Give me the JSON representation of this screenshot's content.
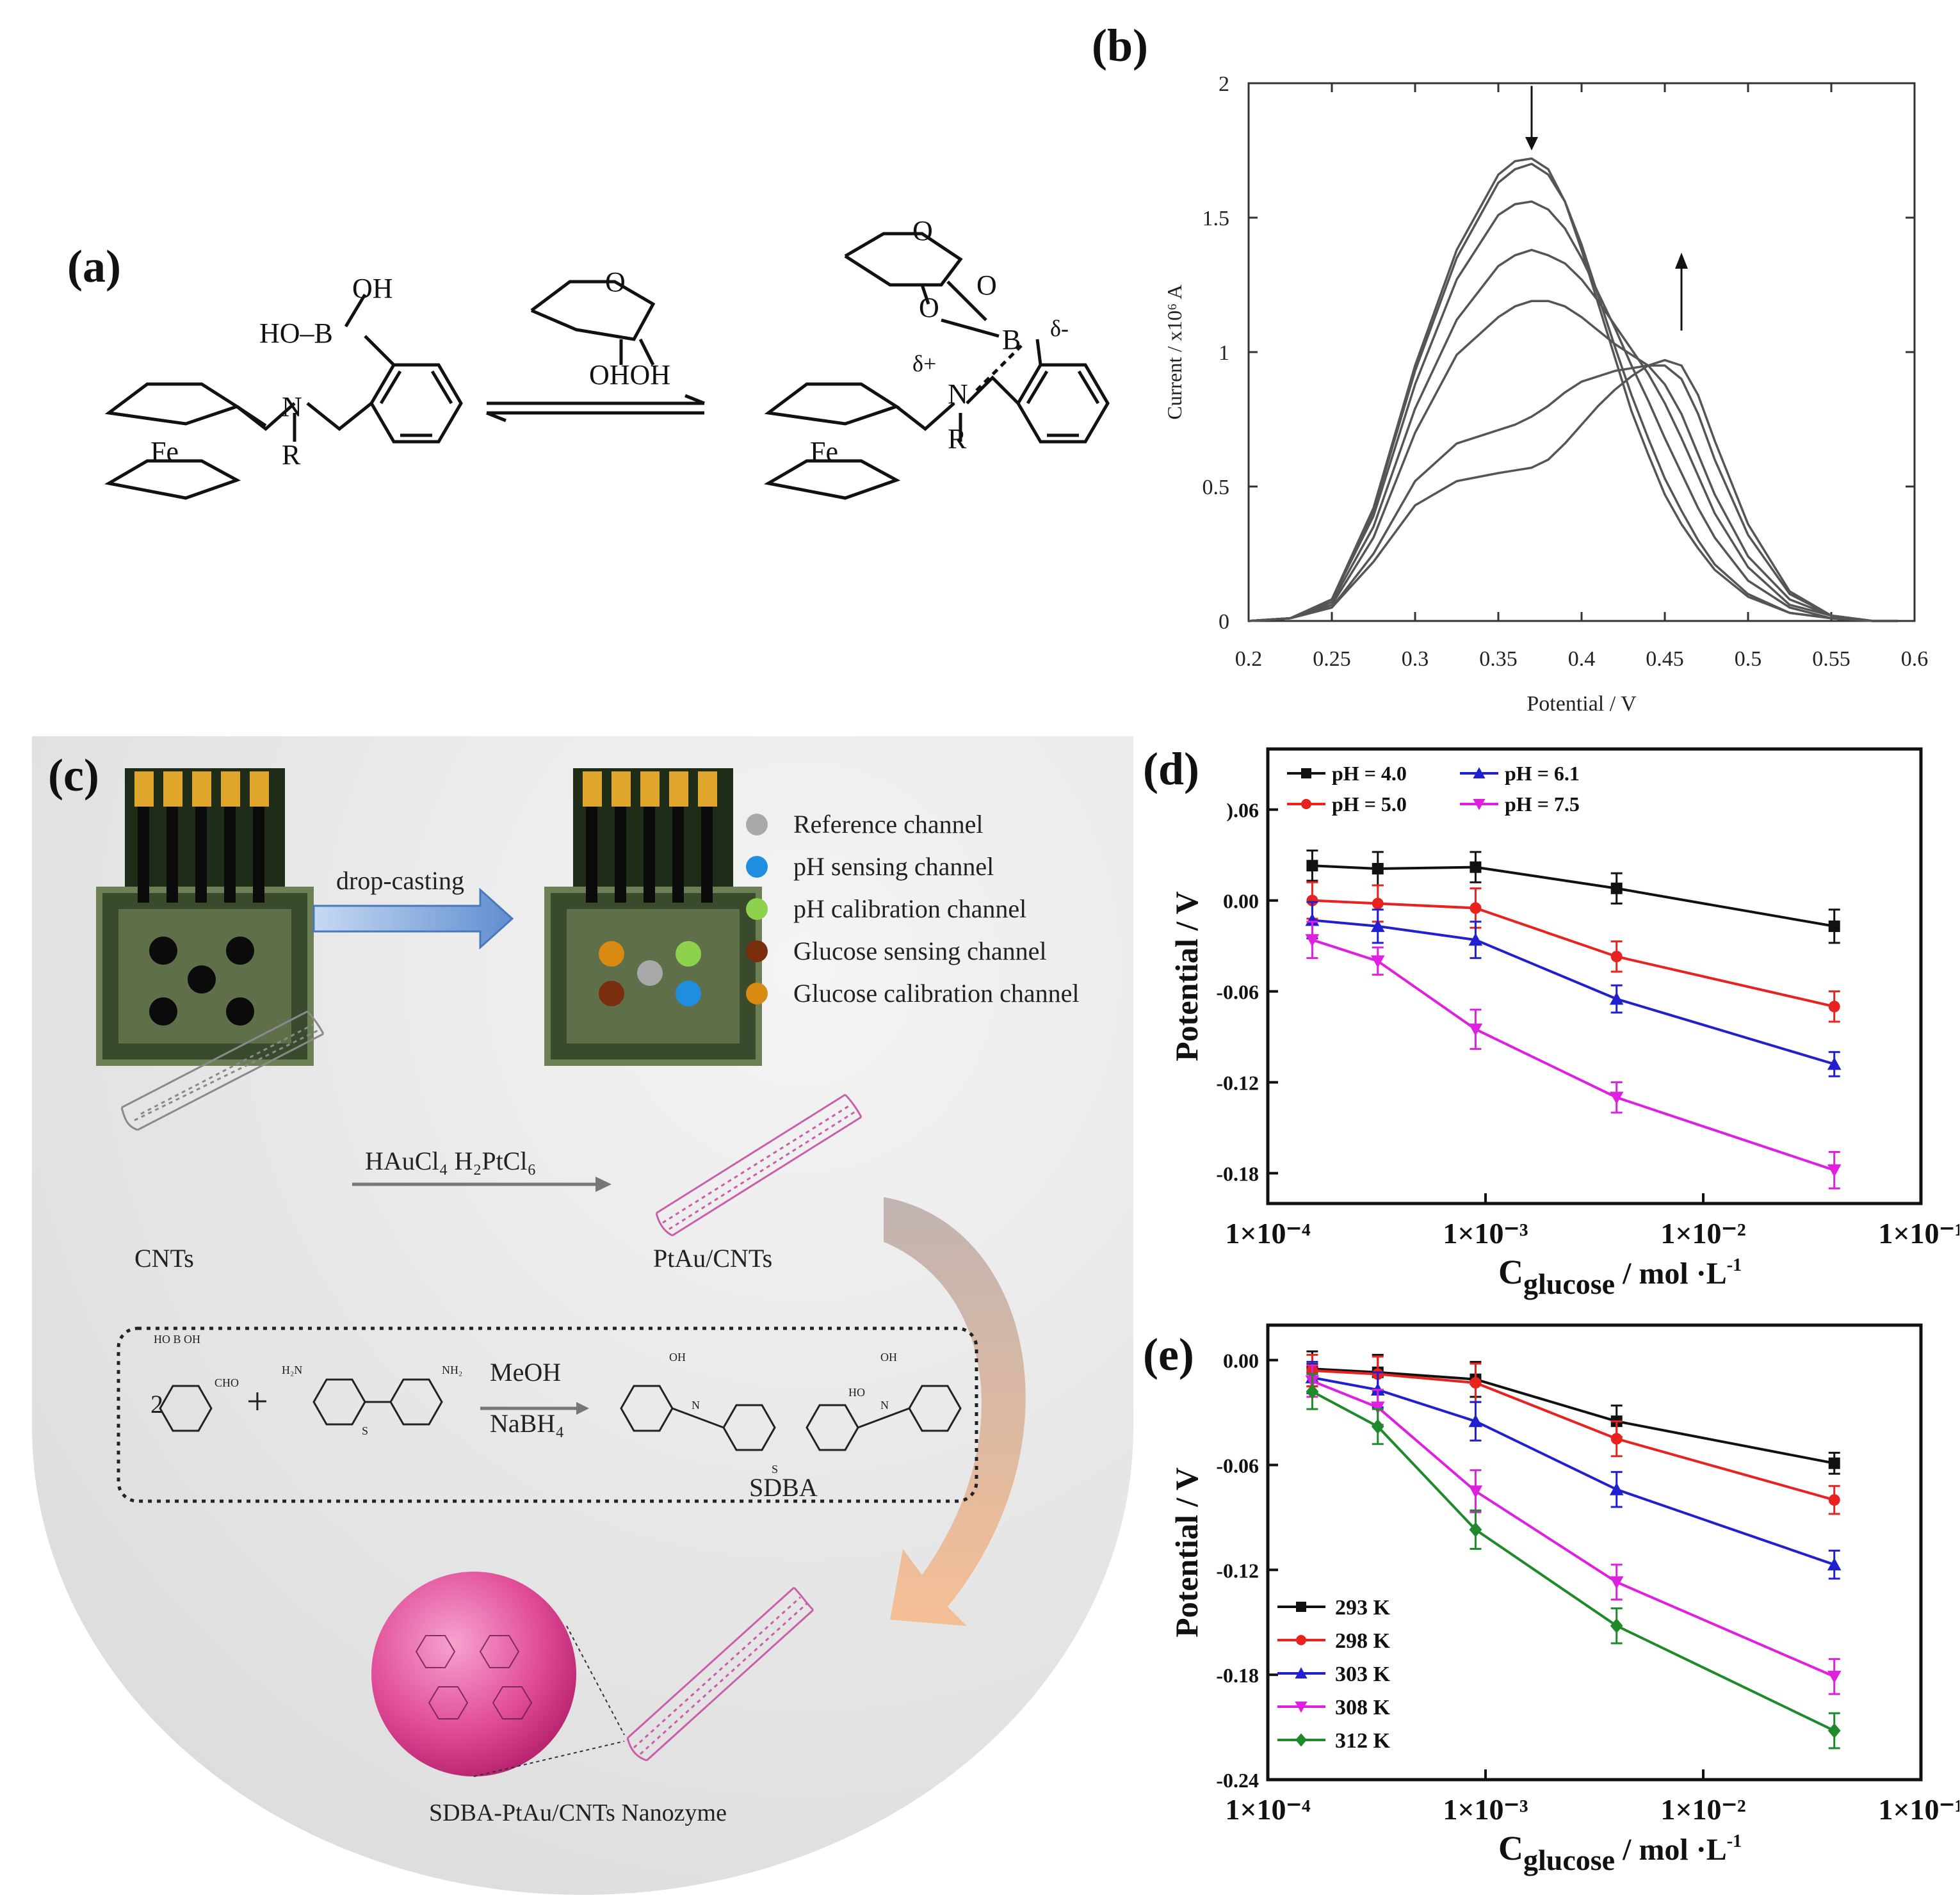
{
  "panels": {
    "a": {
      "label": "(a)",
      "left_molecule": {
        "oh_top": "OH",
        "ho_b": "HO–B",
        "nitrogen": "N",
        "r_group": "R",
        "iron": "Fe"
      },
      "reagent": {
        "ring_o": "O",
        "ohoh": "OHOH"
      },
      "right_molecule": {
        "ring_o1": "O",
        "ring_o2": "O",
        "o3": "O",
        "boron": "B",
        "delta_minus": "δ-",
        "delta_plus": "δ+",
        "nitrogen": "N",
        "r_group": "R",
        "iron": "Fe"
      }
    },
    "b": {
      "label": "(b)"
    },
    "c": {
      "label": "(c)",
      "drop_casting": "drop-casting",
      "legend": [
        {
          "label": "Reference channel",
          "color": "#a9a9a9"
        },
        {
          "label": "pH sensing channel",
          "color": "#1f8ee0"
        },
        {
          "label": "pH calibration channel",
          "color": "#8ed14c"
        },
        {
          "label": "Glucose sensing channel",
          "color": "#7a2e0e"
        },
        {
          "label": "Glucose calibration channel",
          "color": "#d88a12"
        }
      ],
      "reagents_arrow": "HAuCl₄  H₂PtCl₆",
      "cnts_label": "CNTs",
      "ptau_label": "PtAu/CNTs",
      "scheme": {
        "coefficient": "2",
        "plus": "+",
        "meoh": "MeOH",
        "nabh4": "NaBH₄",
        "product": "SDBA",
        "cho": "CHO",
        "ho_b_oh": "HO  B  OH",
        "nh2": "NH₂",
        "h2n": "H₂N",
        "s": "S",
        "oh": "OH",
        "ho": "HO",
        "n": "N"
      },
      "nanozyme_label": "SDBA-PtAu/CNTs Nanozyme"
    },
    "d": {
      "label": "(d)"
    },
    "e": {
      "label": "(e)"
    }
  },
  "chart_data": [
    {
      "id": "b",
      "type": "line",
      "title": "",
      "xlabel": "Potential / V",
      "ylabel": "Current / x10⁶ A",
      "xlim": [
        0.2,
        0.6
      ],
      "ylim": [
        0,
        2
      ],
      "xticks": [
        "0.2",
        "0.25",
        "0.3",
        "0.35",
        "0.4",
        "0.45",
        "0.5",
        "0.55",
        "0.6"
      ],
      "yticks": [
        "0",
        "0.5",
        "1",
        "1.5",
        "2"
      ],
      "x": [
        0.2,
        0.225,
        0.25,
        0.275,
        0.3,
        0.325,
        0.35,
        0.36,
        0.37,
        0.38,
        0.39,
        0.4,
        0.41,
        0.42,
        0.43,
        0.44,
        0.45,
        0.46,
        0.47,
        0.48,
        0.5,
        0.525,
        0.55,
        0.575,
        0.59
      ],
      "series": [
        {
          "name": "c1",
          "values": [
            0,
            0.01,
            0.08,
            0.42,
            0.95,
            1.38,
            1.66,
            1.71,
            1.72,
            1.68,
            1.56,
            1.38,
            1.18,
            0.98,
            0.78,
            0.62,
            0.47,
            0.36,
            0.27,
            0.19,
            0.09,
            0.03,
            0.01,
            0,
            0
          ]
        },
        {
          "name": "c2",
          "values": [
            0,
            0.01,
            0.08,
            0.41,
            0.93,
            1.35,
            1.63,
            1.68,
            1.7,
            1.66,
            1.56,
            1.4,
            1.21,
            1.02,
            0.84,
            0.68,
            0.53,
            0.41,
            0.3,
            0.21,
            0.1,
            0.03,
            0.01,
            0,
            0
          ]
        },
        {
          "name": "c3",
          "values": [
            0,
            0.01,
            0.08,
            0.39,
            0.88,
            1.27,
            1.51,
            1.55,
            1.56,
            1.53,
            1.46,
            1.35,
            1.22,
            1.09,
            0.95,
            0.82,
            0.68,
            0.55,
            0.42,
            0.31,
            0.15,
            0.05,
            0.01,
            0,
            0
          ]
        },
        {
          "name": "c4",
          "values": [
            0,
            0.01,
            0.07,
            0.35,
            0.79,
            1.12,
            1.32,
            1.36,
            1.38,
            1.36,
            1.33,
            1.27,
            1.19,
            1.1,
            1.01,
            0.92,
            0.81,
            0.68,
            0.54,
            0.4,
            0.2,
            0.06,
            0.02,
            0,
            0
          ]
        },
        {
          "name": "c5",
          "values": [
            0,
            0.01,
            0.06,
            0.31,
            0.7,
            0.99,
            1.13,
            1.17,
            1.19,
            1.19,
            1.17,
            1.13,
            1.08,
            1.03,
            0.99,
            0.95,
            0.88,
            0.77,
            0.62,
            0.47,
            0.24,
            0.08,
            0.02,
            0,
            0
          ]
        },
        {
          "name": "c6",
          "values": [
            0,
            0.01,
            0.05,
            0.25,
            0.52,
            0.66,
            0.71,
            0.73,
            0.76,
            0.8,
            0.85,
            0.89,
            0.91,
            0.93,
            0.94,
            0.95,
            0.95,
            0.9,
            0.77,
            0.6,
            0.32,
            0.1,
            0.02,
            0,
            0
          ]
        },
        {
          "name": "c7",
          "values": [
            0,
            0.01,
            0.05,
            0.22,
            0.43,
            0.52,
            0.55,
            0.56,
            0.57,
            0.6,
            0.66,
            0.73,
            0.8,
            0.86,
            0.91,
            0.95,
            0.97,
            0.95,
            0.84,
            0.67,
            0.36,
            0.11,
            0.02,
            0,
            0
          ]
        }
      ],
      "annotations": [
        "↓ (decreasing peak ~0.37 V)",
        "↑ (increasing peak ~0.46 V)"
      ]
    },
    {
      "id": "d",
      "type": "line",
      "xlabel": "C",
      "xlabel_sub": "glucose",
      "xlabel_unit": " / mol ·L",
      "xlabel_sup": "-1",
      "ylabel": "Potential / V",
      "x_log": true,
      "xlim": [
        0.0001,
        0.1
      ],
      "ylim": [
        -0.2,
        0.1
      ],
      "xticks": [
        "1×10⁻⁴",
        "1×10⁻³",
        "1×10⁻²",
        "1×10⁻¹"
      ],
      "yticks": [
        {
          "label": ").06",
          "value": 0.06
        },
        {
          "label": "0.00",
          "value": 0.0
        },
        {
          "label": "-0.06",
          "value": -0.06
        },
        {
          "label": "-0.12",
          "value": -0.12
        },
        {
          "label": "-0.18",
          "value": -0.18
        }
      ],
      "x": [
        0.00016,
        0.00032,
        0.0009,
        0.004,
        0.04
      ],
      "series": [
        {
          "name": "pH = 4.0",
          "color": "#111111",
          "marker": "square",
          "values": [
            0.023,
            0.021,
            0.022,
            0.008,
            -0.017
          ],
          "errors": [
            0.01,
            0.011,
            0.01,
            0.01,
            0.011
          ]
        },
        {
          "name": "pH = 5.0",
          "color": "#e8231f",
          "marker": "circle",
          "values": [
            0.0,
            -0.002,
            -0.005,
            -0.037,
            -0.07
          ],
          "errors": [
            0.012,
            0.012,
            0.013,
            0.01,
            0.01
          ]
        },
        {
          "name": "pH = 6.1",
          "color": "#2020d0",
          "marker": "triangle-up",
          "values": [
            -0.013,
            -0.017,
            -0.026,
            -0.065,
            -0.108
          ],
          "errors": [
            0.012,
            0.011,
            0.012,
            0.009,
            0.008
          ]
        },
        {
          "name": "pH = 7.5",
          "color": "#e020e0",
          "marker": "triangle-down",
          "values": [
            -0.026,
            -0.04,
            -0.085,
            -0.13,
            -0.178
          ],
          "errors": [
            0.012,
            0.009,
            0.013,
            0.01,
            0.012
          ]
        }
      ],
      "legend": "top-left"
    },
    {
      "id": "e",
      "type": "line",
      "xlabel": "C",
      "xlabel_sub": "glucose",
      "xlabel_unit": " / mol ·L",
      "xlabel_sup": "-1",
      "ylabel": "Potential / V",
      "x_log": true,
      "xlim": [
        0.0001,
        0.1
      ],
      "ylim": [
        -0.24,
        0.02
      ],
      "xticks": [
        "1×10⁻⁴",
        "1×10⁻³",
        "1×10⁻²",
        "1×10⁻¹"
      ],
      "yticks": [
        {
          "label": "0.00",
          "value": 0.0
        },
        {
          "label": "-0.06",
          "value": -0.06
        },
        {
          "label": "-0.12",
          "value": -0.12
        },
        {
          "label": "-0.18",
          "value": -0.18
        },
        {
          "label": "-0.24",
          "value": -0.24
        }
      ],
      "x": [
        0.00016,
        0.00032,
        0.0009,
        0.004,
        0.04
      ],
      "series": [
        {
          "name": "293 K",
          "color": "#111111",
          "marker": "square",
          "values": [
            -0.005,
            -0.007,
            -0.011,
            -0.035,
            -0.059
          ],
          "errors": [
            0.01,
            0.01,
            0.01,
            0.009,
            0.006
          ]
        },
        {
          "name": "298 K",
          "color": "#e8231f",
          "marker": "circle",
          "values": [
            -0.006,
            -0.008,
            -0.013,
            -0.045,
            -0.08
          ],
          "errors": [
            0.009,
            0.01,
            0.011,
            0.01,
            0.008
          ]
        },
        {
          "name": "303 K",
          "color": "#2020d0",
          "marker": "triangle-up",
          "values": [
            -0.01,
            -0.017,
            -0.035,
            -0.074,
            -0.117
          ],
          "errors": [
            0.009,
            0.01,
            0.011,
            0.01,
            0.008
          ]
        },
        {
          "name": "308 K",
          "color": "#e020e0",
          "marker": "triangle-down",
          "values": [
            -0.012,
            -0.027,
            -0.075,
            -0.127,
            -0.181
          ],
          "errors": [
            0.009,
            0.01,
            0.012,
            0.01,
            0.01
          ]
        },
        {
          "name": "312 K",
          "color": "#1f8a2a",
          "marker": "diamond",
          "values": [
            -0.018,
            -0.038,
            -0.097,
            -0.152,
            -0.212
          ],
          "errors": [
            0.01,
            0.01,
            0.011,
            0.01,
            0.01
          ]
        }
      ],
      "legend": "bottom-left"
    }
  ]
}
